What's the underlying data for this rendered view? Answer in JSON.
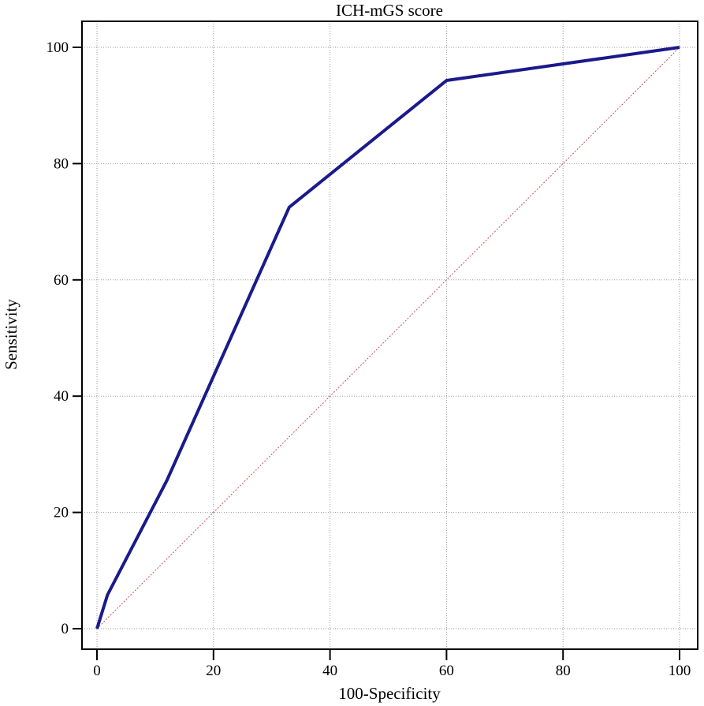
{
  "chart_data": {
    "type": "line",
    "title": "ICH-mGS score",
    "xlabel": "100-Specificity",
    "ylabel": "Sensitivity",
    "xlim": [
      0,
      100
    ],
    "ylim": [
      0,
      100
    ],
    "xticks": [
      "0",
      "20",
      "40",
      "60",
      "80",
      "100"
    ],
    "yticks": [
      "0",
      "20",
      "40",
      "60",
      "80",
      "100"
    ],
    "grid": true,
    "series": [
      {
        "color": "#1a1a8c",
        "x": [
          0,
          1.8,
          12,
          33,
          60,
          100
        ],
        "y": [
          0,
          5.8,
          25.5,
          72.5,
          94.3,
          100
        ]
      },
      {
        "color": "#c0504d",
        "style": "dotted",
        "x": [
          0,
          100
        ],
        "y": [
          0,
          100
        ]
      }
    ]
  }
}
